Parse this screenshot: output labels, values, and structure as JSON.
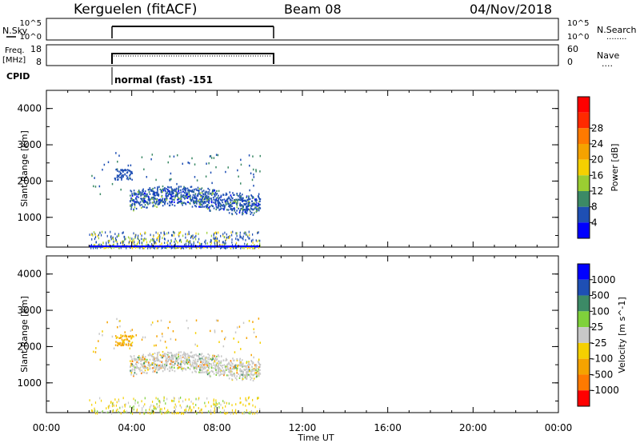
{
  "header": {
    "station": "Kerguelen (fitACF)",
    "beam": "Beam 08",
    "date": "04/Nov/2018"
  },
  "top_panels": {
    "nsky_label": "N.Sky",
    "nsky_ticks": [
      "10^5",
      "10^0"
    ],
    "nsky_right_ticks": [
      "10^5",
      "10^0"
    ],
    "nsearch_label": "N.Search",
    "nsearch_dots": "........",
    "freq_label_1": "Freq.",
    "freq_label_2": "[MHz]",
    "freq_ticks": [
      "18",
      "8"
    ],
    "nave_ticks": [
      "60",
      "0"
    ],
    "nave_label": "Nave",
    "nave_dots": "....",
    "cpid_label": "CPID",
    "cpid_text": "normal (fast) -151"
  },
  "xaxis": {
    "ticks": [
      "00:00",
      "04:00",
      "08:00",
      "12:00",
      "16:00",
      "20:00",
      "00:00"
    ],
    "label": "Time UT"
  },
  "chart_data": [
    {
      "type": "heatmap",
      "title": "",
      "xlabel": "Time UT",
      "ylabel": "Slant Range [km]",
      "xlim": [
        0,
        24
      ],
      "ylim": [
        180,
        4500
      ],
      "yticks": [
        "1000",
        "2000",
        "3000",
        "4000"
      ],
      "colorbar": {
        "label": "Power [dB]",
        "ticks": [
          "4",
          "8",
          "12",
          "16",
          "20",
          "24",
          "28"
        ],
        "colors": [
          "#0000ff",
          "#1e4fb4",
          "#3c8a66",
          "#9acd32",
          "#f5d000",
          "#f5a300",
          "#ff7a00",
          "#ff2a00",
          "#ff0000"
        ]
      },
      "data_extent_hours": [
        2.0,
        10.0
      ],
      "features": [
        {
          "name": "main echo band",
          "t_start": 3.9,
          "t_end": 10.0,
          "range_km": [
            1250,
            1900
          ]
        },
        {
          "name": "ground scatter near range",
          "t_start": 2.0,
          "t_end": 10.0,
          "range_km": [
            180,
            600
          ]
        }
      ]
    },
    {
      "type": "heatmap",
      "title": "",
      "xlabel": "Time UT",
      "ylabel": "Slant Range [km]",
      "xlim": [
        0,
        24
      ],
      "ylim": [
        180,
        4500
      ],
      "yticks": [
        "1000",
        "2000",
        "3000",
        "4000"
      ],
      "colorbar": {
        "label": "Velocity [m s^-1]",
        "ticks": [
          "1000",
          "500",
          "100",
          "25",
          "-25",
          "-100",
          "-500",
          "-1000"
        ],
        "colors": [
          "#0000ff",
          "#1e4fb4",
          "#3c8a66",
          "#7fd13b",
          "#c8c8c8",
          "#f5d000",
          "#f5a300",
          "#ff7a00",
          "#ff0000"
        ]
      },
      "data_extent_hours": [
        2.0,
        10.0
      ],
      "features": [
        {
          "name": "main echo band (near-zero velocity)",
          "t_start": 3.9,
          "t_end": 10.0,
          "range_km": [
            1250,
            1900
          ]
        }
      ]
    }
  ]
}
